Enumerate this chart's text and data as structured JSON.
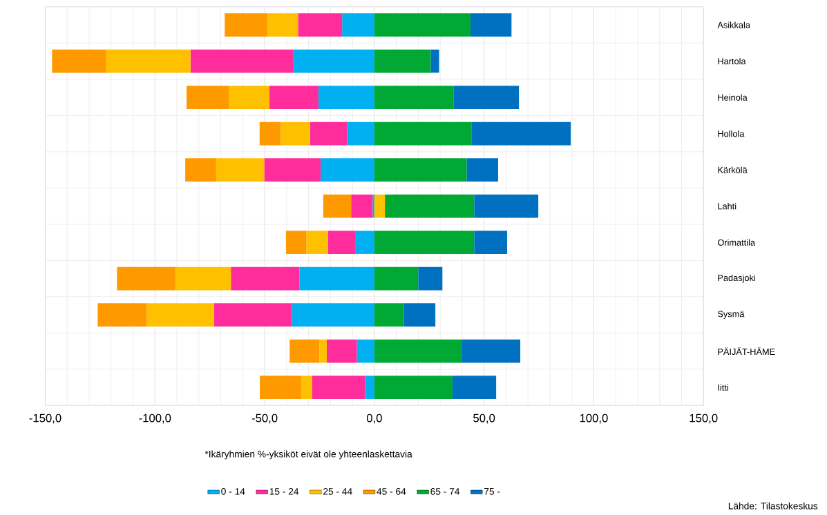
{
  "chart_data": {
    "type": "bar",
    "orientation": "horizontal",
    "stacked": true,
    "categories": [
      "Asikkala",
      "Hartola",
      "Heinola",
      "Hollola",
      "Kärkölä",
      "Lahti",
      "Orimattila",
      "Padasjoki",
      "Sysmä",
      "PÄIJÄT-HÄME",
      "Iitti"
    ],
    "series": [
      {
        "name": "0 - 14",
        "color": "#00b0f0",
        "values": [
          -14.7,
          -37.1,
          -25.5,
          -12.4,
          -24.5,
          -0.8,
          -8.5,
          -34.1,
          -37.6,
          -8.0,
          -4.2
        ]
      },
      {
        "name": "15 - 24",
        "color": "#ff2d9b",
        "values": [
          -20.1,
          -46.7,
          -22.3,
          -16.9,
          -25.7,
          -9.8,
          -12.6,
          -31.3,
          -35.5,
          -13.7,
          -24.1
        ]
      },
      {
        "name": "25 - 44",
        "color": "#ffc000",
        "values": [
          -13.9,
          -38.4,
          -18.6,
          -13.4,
          -21.9,
          4.8,
          -9.9,
          -25.3,
          -30.7,
          -3.3,
          -4.9
        ]
      },
      {
        "name": "45 - 64",
        "color": "#ff9900",
        "values": [
          -19.5,
          -24.7,
          -19.2,
          -9.6,
          -14.1,
          -12.7,
          -9.3,
          -26.6,
          -22.3,
          -13.6,
          -19.0
        ]
      },
      {
        "name": "65 - 74",
        "color": "#00a933",
        "values": [
          43.8,
          25.7,
          36.2,
          44.4,
          42.1,
          40.7,
          45.5,
          20.0,
          13.4,
          39.5,
          35.6
        ]
      },
      {
        "name": "75 -",
        "color": "#0070c0",
        "values": [
          18.7,
          3.8,
          29.7,
          45.1,
          14.3,
          29.2,
          15.0,
          11.0,
          14.4,
          27.0,
          19.9
        ]
      }
    ],
    "xlim": [
      -150,
      150
    ],
    "xticks": [
      {
        "value": -150,
        "label": "-150,0"
      },
      {
        "value": -100,
        "label": "-100,0"
      },
      {
        "value": -50,
        "label": "-50,0"
      },
      {
        "value": 0,
        "label": "0,0"
      },
      {
        "value": 50,
        "label": "50,0"
      },
      {
        "value": 100,
        "label": "100,0"
      },
      {
        "value": 150,
        "label": "150,0"
      }
    ],
    "grid": true,
    "legend": "bottom",
    "annotations": [
      "*Ikäryhmien %-yksiköt eivät ole yhteenlaskettavia",
      "Lähde: Tilastokeskus"
    ]
  }
}
